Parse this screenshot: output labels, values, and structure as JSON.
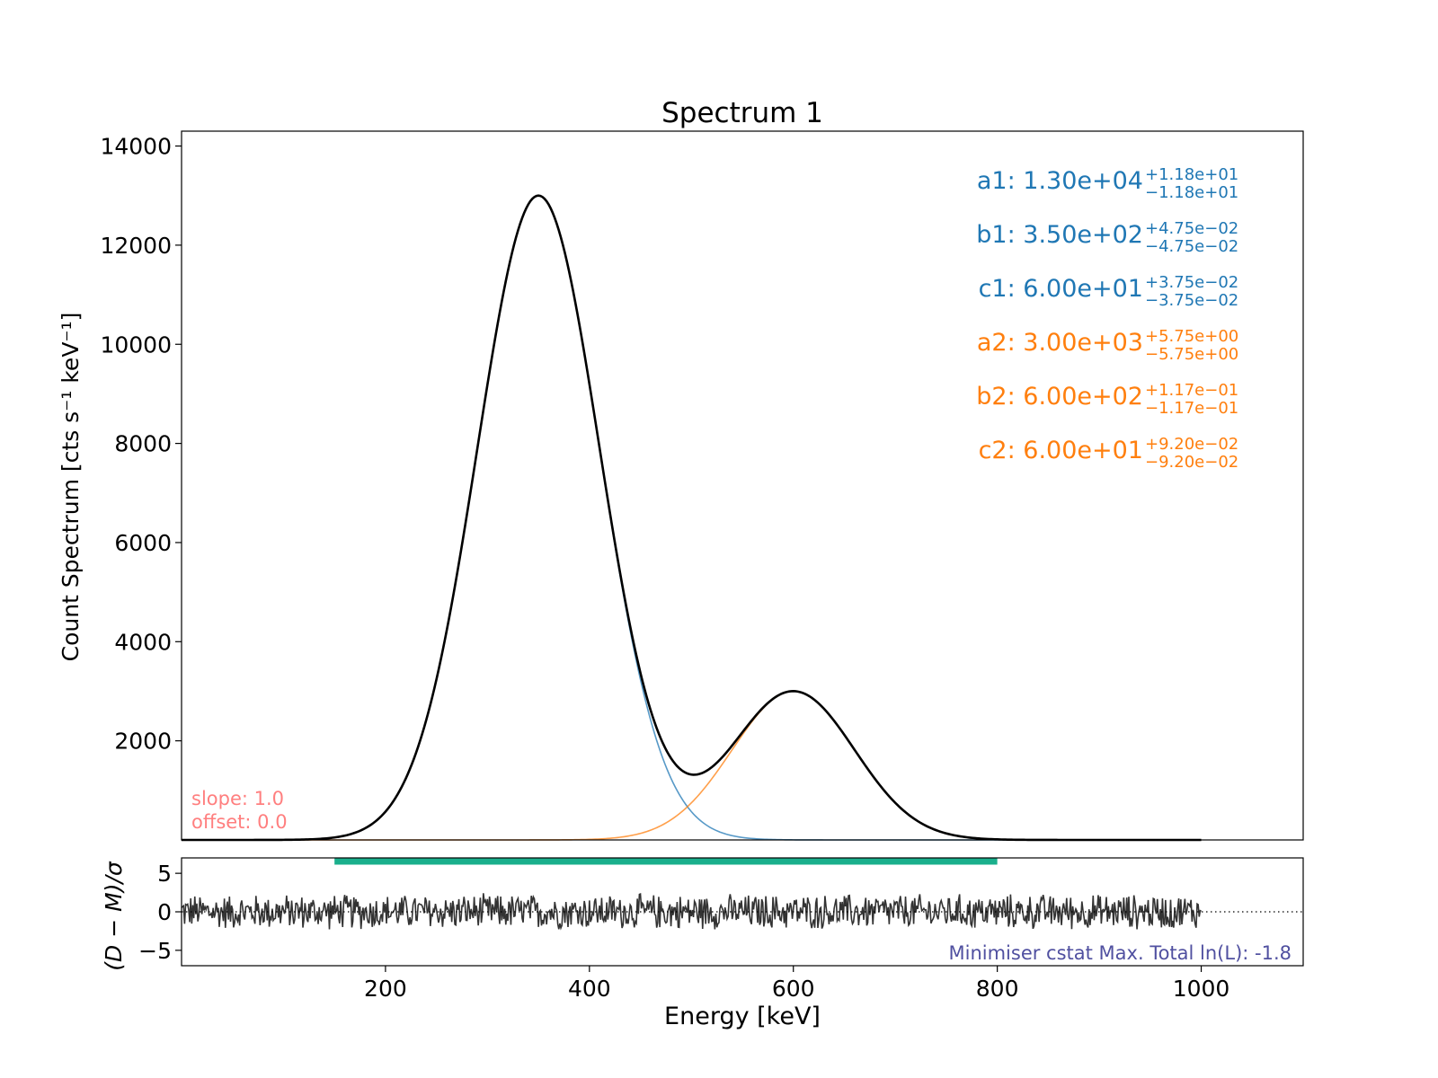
{
  "chart_data": [
    {
      "type": "line",
      "title": "Spectrum 1",
      "xlabel": "",
      "ylabel": "Count Spectrum [cts s⁻¹ keV⁻¹]",
      "xlim": [
        0,
        1100
      ],
      "ylim": [
        0,
        14300
      ],
      "yticks": [
        2000,
        4000,
        6000,
        8000,
        10000,
        12000,
        14000
      ],
      "x_range": [
        0,
        1000
      ],
      "components": [
        {
          "name": "",
          "function": "gaussian",
          "a": 13000,
          "b": 350,
          "c": 60,
          "color": "#1f77b4"
        },
        {
          "name": "",
          "function": "gaussian",
          "a": 3000,
          "b": 600,
          "c": 60,
          "color": "#ff7f0e"
        }
      ],
      "total_model": {
        "name": "",
        "color": "#000000",
        "expression": "component 1 + component 2"
      },
      "parameters": [
        {
          "name": "a1",
          "value": "1.30e+04",
          "plus": "+1.18e+01",
          "minus": "−1.18e+01",
          "color": "#1f77b4"
        },
        {
          "name": "b1",
          "value": "3.50e+02",
          "plus": "+4.75e−02",
          "minus": "−4.75e−02",
          "color": "#1f77b4"
        },
        {
          "name": "c1",
          "value": "6.00e+01",
          "plus": "+3.75e−02",
          "minus": "−3.75e−02",
          "color": "#1f77b4"
        },
        {
          "name": "a2",
          "value": "3.00e+03",
          "plus": "+5.75e+00",
          "minus": "−5.75e+00",
          "color": "#ff7f0e"
        },
        {
          "name": "b2",
          "value": "6.00e+02",
          "plus": "+1.17e−01",
          "minus": "−1.17e−01",
          "color": "#ff7f0e"
        },
        {
          "name": "c2",
          "value": "6.00e+01",
          "plus": "+9.20e−02",
          "minus": "−9.20e−02",
          "color": "#ff7f0e"
        }
      ],
      "annotations": {
        "slope": "slope: 1.0",
        "offset": "offset: 0.0",
        "color": "#ff7f7f"
      }
    },
    {
      "type": "line",
      "title": "",
      "xlabel": "Energy [keV]",
      "ylabel": "(D − M)/σ",
      "xlim": [
        0,
        1100
      ],
      "ylim": [
        -7,
        7
      ],
      "xticks": [
        200,
        400,
        600,
        800,
        1000
      ],
      "yticks": [
        -5,
        0,
        5
      ],
      "residuals": {
        "x_range": [
          0,
          1000
        ],
        "amplitude": 2.5,
        "color": "#333333"
      },
      "zero_line": {
        "y": 0,
        "style": "dotted",
        "color": "#000000"
      },
      "fit_range": {
        "x": [
          150,
          800
        ],
        "color": "#1aaf8c"
      },
      "annotation": {
        "text": "Minimiser cstat Max. Total ln(L): -1.8",
        "color": "#5050a0"
      }
    }
  ]
}
